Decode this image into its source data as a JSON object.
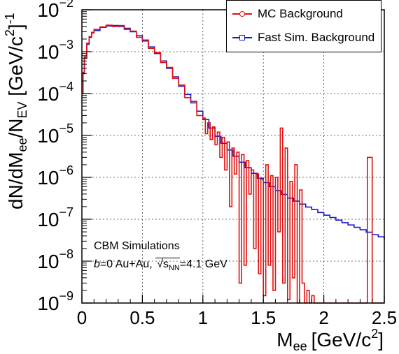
{
  "chart_data": {
    "type": "line",
    "xlabel_main": "M",
    "xlabel_sub": "ee",
    "xlabel_unit": "[GeV/c",
    "xlabel_sup": "2",
    "xlabel_close": "]",
    "ylabel_parts": [
      "dN/dM",
      "ee",
      "/N",
      "EV",
      " [GeV/c",
      "2",
      "]",
      "-1"
    ],
    "xlim": [
      0,
      2.5
    ],
    "ylim": [
      1e-09,
      0.01
    ],
    "yscale": "log",
    "grid": true,
    "x_ticks": [
      "0",
      "0.5",
      "1",
      "1.5",
      "2",
      "2.5"
    ],
    "y_ticks": [
      {
        "base": "10",
        "exp": "−2"
      },
      {
        "base": "10",
        "exp": "−3"
      },
      {
        "base": "10",
        "exp": "−4"
      },
      {
        "base": "10",
        "exp": "−5"
      },
      {
        "base": "10",
        "exp": "−6"
      },
      {
        "base": "10",
        "exp": "−7"
      },
      {
        "base": "10",
        "exp": "−8"
      },
      {
        "base": "10",
        "exp": "−9"
      }
    ],
    "legend": {
      "placement": "top-right",
      "entries": [
        "MC Background",
        "Fast Sim. Background"
      ]
    },
    "annotations": {
      "line1": "CBM Simulations",
      "b_label": "b",
      "line2_rest": "=0  Au+Au, ",
      "sqrt_s": "s",
      "sqrt_sub": "NN",
      "energy": "=4.1 GeV"
    },
    "series": [
      {
        "name": "Fast Sim. Background",
        "color": "#1a1acc",
        "x": [
          0.0,
          0.01,
          0.02,
          0.04,
          0.06,
          0.08,
          0.1,
          0.15,
          0.2,
          0.25,
          0.3,
          0.35,
          0.4,
          0.45,
          0.5,
          0.55,
          0.6,
          0.65,
          0.7,
          0.75,
          0.8,
          0.85,
          0.9,
          0.95,
          1.0,
          1.05,
          1.1,
          1.15,
          1.2,
          1.25,
          1.3,
          1.35,
          1.4,
          1.45,
          1.5,
          1.55,
          1.6,
          1.65,
          1.7,
          1.75,
          1.8,
          1.85,
          1.9,
          1.95,
          2.0,
          2.05,
          2.1,
          2.15,
          2.2,
          2.25,
          2.3,
          2.35,
          2.4,
          2.45,
          2.5
        ],
        "y": [
          0.0001,
          0.0003,
          0.0007,
          0.0015,
          0.0022,
          0.0028,
          0.0032,
          0.0038,
          0.0041,
          0.0042,
          0.004,
          0.0036,
          0.003,
          0.0024,
          0.0018,
          0.0013,
          0.0009,
          0.0006,
          0.0004,
          0.00025,
          0.00015,
          9.5e-05,
          6e-05,
          3.8e-05,
          2.4e-05,
          1.5e-05,
          9.5e-06,
          6.5e-06,
          4.5e-06,
          3.2e-06,
          2.3e-06,
          1.7e-06,
          1.25e-06,
          9.5e-07,
          7.5e-07,
          6e-07,
          4.8e-07,
          3.9e-07,
          3.2e-07,
          2.7e-07,
          2.3e-07,
          1.95e-07,
          1.7e-07,
          1.45e-07,
          1.25e-07,
          1.1e-07,
          9.5e-08,
          8.3e-08,
          7.3e-08,
          6.4e-08,
          5.6e-08,
          4.9e-08,
          4.3e-08,
          3.8e-08,
          3.3e-08
        ]
      },
      {
        "name": "MC Background",
        "color": "#e01010",
        "x": [
          0.0,
          0.01,
          0.02,
          0.04,
          0.06,
          0.08,
          0.1,
          0.15,
          0.2,
          0.25,
          0.3,
          0.35,
          0.4,
          0.45,
          0.5,
          0.55,
          0.6,
          0.65,
          0.7,
          0.75,
          0.8,
          0.85,
          0.9,
          0.95,
          1.0,
          1.02,
          1.04,
          1.06,
          1.08,
          1.1,
          1.12,
          1.14,
          1.16,
          1.18,
          1.2,
          1.22,
          1.24,
          1.26,
          1.28,
          1.3,
          1.32,
          1.34,
          1.36,
          1.38,
          1.4,
          1.42,
          1.44,
          1.46,
          1.48,
          1.5,
          1.52,
          1.54,
          1.56,
          1.58,
          1.6,
          1.62,
          1.64,
          1.66,
          1.68,
          1.7,
          1.72,
          1.74,
          1.76,
          1.78,
          1.8,
          1.82,
          1.84,
          1.86,
          1.88,
          1.9,
          1.92,
          1.94,
          1.96,
          1.98,
          2.0,
          2.04,
          2.08,
          2.12,
          2.16,
          2.2,
          2.24,
          2.28,
          2.32,
          2.36,
          2.4,
          2.45,
          2.5
        ],
        "y": [
          0.0001,
          0.00032,
          0.00075,
          0.0016,
          0.0023,
          0.0029,
          0.0034,
          0.0039,
          0.0043,
          0.004,
          0.0042,
          0.0034,
          0.0031,
          0.0022,
          0.0019,
          0.0012,
          0.00095,
          0.00055,
          0.00042,
          0.00023,
          0.00016,
          8e-05,
          6.5e-05,
          3e-05,
          2.6e-05,
          1.1e-05,
          2e-05,
          8e-06,
          1.6e-05,
          6e-06,
          1.2e-05,
          3e-06,
          9e-06,
          1.5e-06,
          7e-06,
          2e-07,
          5e-06,
          1.2e-06,
          4e-06,
          3e-09,
          3.5e-06,
          8e-09,
          2.5e-06,
          4e-07,
          1.5e-06,
          2e-08,
          1.2e-06,
          5e-09,
          9e-07,
          1.5e-09,
          2e-06,
          8e-09,
          1.1e-06,
          2e-09,
          1e-06,
          5e-08,
          1.5e-05,
          3e-09,
          5e-06,
          1.2e-09,
          8e-07,
          4e-09,
          2e-06,
          1e-09,
          5e-07,
          3e-09,
          1e-09,
          2e-09,
          1e-09,
          1.5e-09,
          1e-09,
          1e-09,
          1e-09,
          1e-09,
          1e-09,
          1e-09,
          1e-09,
          1e-09,
          1e-09,
          1e-09,
          1e-09,
          1e-09,
          1e-09,
          3e-06,
          1e-09,
          1e-09,
          1e-09
        ]
      }
    ]
  }
}
